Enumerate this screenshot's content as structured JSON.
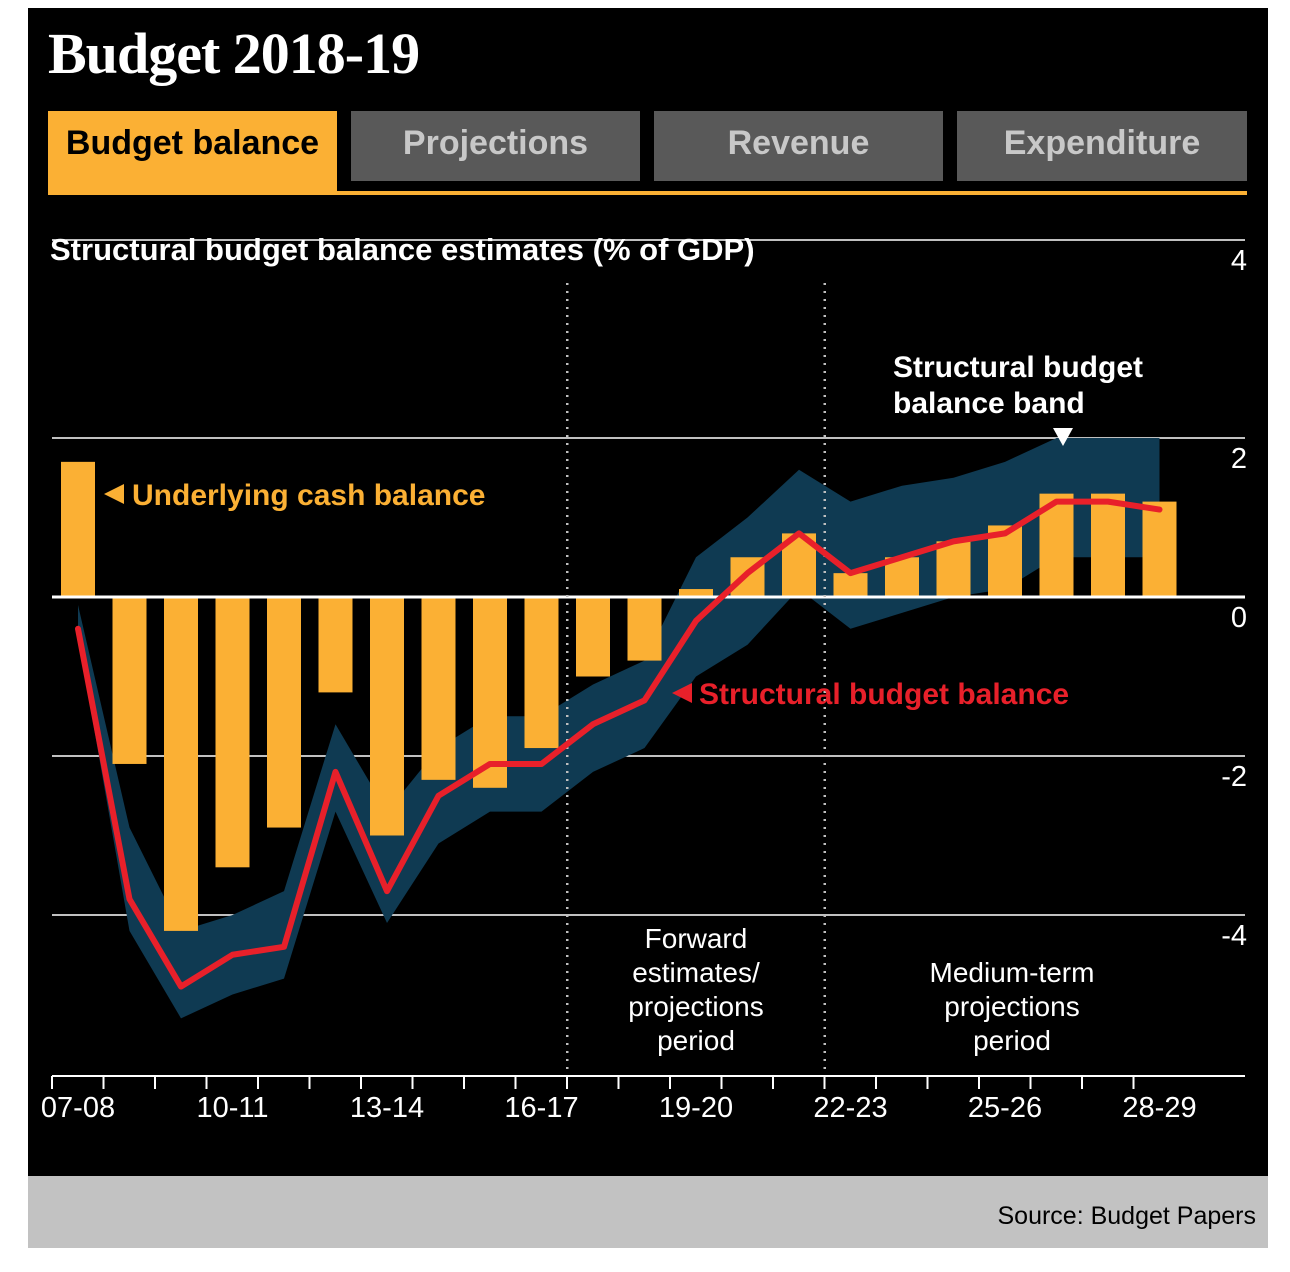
{
  "header": {
    "title": "Budget 2018-19"
  },
  "tabs": [
    {
      "label": "Budget balance",
      "active": true
    },
    {
      "label": "Projections",
      "active": false
    },
    {
      "label": "Revenue",
      "active": false
    },
    {
      "label": "Expenditure",
      "active": false
    }
  ],
  "footer": {
    "source": "Source: Budget Papers"
  },
  "colors": {
    "accent": "#fbb034",
    "line": "#e8202a",
    "band": "#0f3a52",
    "tab_inactive": "#595959"
  },
  "chart_data": {
    "type": "bar",
    "title": "Structural budget balance estimates (% of GDP)",
    "categories": [
      "07-08",
      "08-09",
      "09-10",
      "10-11",
      "11-12",
      "12-13",
      "13-14",
      "14-15",
      "15-16",
      "16-17",
      "17-18",
      "18-19",
      "19-20",
      "20-21",
      "21-22",
      "22-23",
      "23-24",
      "24-25",
      "25-26",
      "26-27",
      "27-28",
      "28-29"
    ],
    "x_tick_labels": [
      "07-08",
      "10-11",
      "13-14",
      "16-17",
      "19-20",
      "22-23",
      "25-26",
      "28-29"
    ],
    "ylim": [
      -6,
      4
    ],
    "y_ticks": [
      4,
      2,
      0,
      -2,
      -4
    ],
    "series": [
      {
        "name": "Underlying cash balance",
        "type": "bar",
        "values": [
          1.7,
          -2.1,
          -4.2,
          -3.4,
          -2.9,
          -1.2,
          -3.0,
          -2.3,
          -2.4,
          -1.9,
          -1.0,
          -0.8,
          0.1,
          0.5,
          0.8,
          0.3,
          0.5,
          0.7,
          0.9,
          1.3,
          1.3,
          1.2
        ]
      },
      {
        "name": "Structural budget balance",
        "type": "line",
        "values": [
          -0.4,
          -3.8,
          -4.9,
          -4.5,
          -4.4,
          -2.2,
          -3.7,
          -2.5,
          -2.1,
          -2.1,
          -1.6,
          -1.3,
          -0.3,
          0.3,
          0.8,
          0.3,
          0.5,
          0.7,
          0.8,
          1.2,
          1.2,
          1.1
        ]
      },
      {
        "name": "Structural budget balance band",
        "type": "area",
        "upper": [
          -0.1,
          -2.9,
          -4.2,
          -4.0,
          -3.7,
          -1.6,
          -2.7,
          -1.9,
          -1.5,
          -1.5,
          -1.1,
          -0.8,
          0.5,
          1.0,
          1.6,
          1.2,
          1.4,
          1.5,
          1.7,
          2.0,
          2.0,
          2.0
        ],
        "lower": [
          -0.5,
          -4.2,
          -5.3,
          -5.0,
          -4.8,
          -2.7,
          -4.1,
          -3.1,
          -2.7,
          -2.7,
          -2.2,
          -1.9,
          -1.0,
          -0.6,
          0.1,
          -0.4,
          -0.2,
          0.0,
          0.1,
          0.5,
          0.5,
          0.5
        ]
      }
    ],
    "period_dividers": [
      "16-17",
      "21-22"
    ],
    "annotations": {
      "cash_label": "Underlying cash balance",
      "structural_label": "Structural budget balance",
      "band_label_1": "Structural budget",
      "band_label_2": "balance band",
      "forward_1": "Forward",
      "forward_2": "estimates/",
      "forward_3": "projections",
      "forward_4": "period",
      "medium_1": "Medium-term",
      "medium_2": "projections",
      "medium_3": "period"
    }
  }
}
